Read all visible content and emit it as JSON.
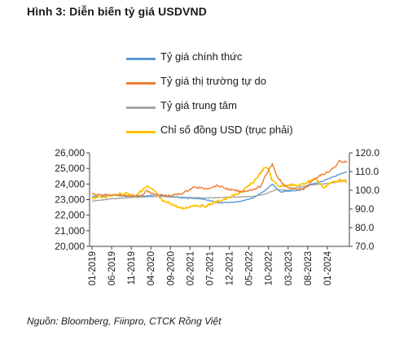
{
  "figure_title": "Hình 3: Diễn biến tỷ giá USDVND",
  "source": "Nguồn: Bloomberg, Fiinpro, CTCK Rồng Việt",
  "colors": {
    "official": "#5B9BD5",
    "free_market": "#ED7D31",
    "central": "#A5A5A5",
    "dxy": "#FFC000",
    "axis": "#404040"
  },
  "chart_data": {
    "type": "line",
    "title": "",
    "legend_position": "top",
    "x_ticks": [
      "01-2019",
      "06-2019",
      "11-2019",
      "04-2020",
      "09-2020",
      "02-2021",
      "07-2021",
      "12-2021",
      "05-2022",
      "10-2022",
      "03-2023",
      "08-2023",
      "01-2024"
    ],
    "y_left": {
      "ticks": [
        "20,000",
        "21,000",
        "22,000",
        "23,000",
        "24,000",
        "25,000",
        "26,000"
      ],
      "ylim": [
        20000,
        26000
      ]
    },
    "y_right": {
      "ticks": [
        "70.0",
        "80.0",
        "90.0",
        "100.0",
        "110.0",
        "120.0"
      ],
      "ylim": [
        70,
        120
      ]
    },
    "grid": false,
    "series": [
      {
        "name": "Tỷ giá chính thức",
        "axis": "left",
        "color_key": "official",
        "x": [
          "2019-01",
          "2019-03",
          "2019-06",
          "2019-09",
          "2019-12",
          "2020-03",
          "2020-06",
          "2020-09",
          "2020-12",
          "2021-03",
          "2021-06",
          "2021-09",
          "2021-12",
          "2022-03",
          "2022-06",
          "2022-09",
          "2022-11",
          "2023-01",
          "2023-03",
          "2023-06",
          "2023-09",
          "2023-11",
          "2024-01",
          "2024-03",
          "2024-05",
          "2024-06"
        ],
        "values": [
          23200,
          23200,
          23300,
          23230,
          23200,
          23250,
          23300,
          23200,
          23100,
          23100,
          23000,
          22800,
          22800,
          22900,
          23100,
          23550,
          24000,
          23500,
          23550,
          23600,
          24000,
          24100,
          24300,
          24500,
          24700,
          24800
        ]
      },
      {
        "name": "Tỷ giá thị trường tự do",
        "axis": "left",
        "color_key": "free_market",
        "x": [
          "2019-01",
          "2019-03",
          "2019-06",
          "2019-09",
          "2019-12",
          "2020-02",
          "2020-03",
          "2020-04",
          "2020-06",
          "2020-09",
          "2020-12",
          "2021-03",
          "2021-06",
          "2021-09",
          "2021-12",
          "2022-03",
          "2022-06",
          "2022-08",
          "2022-10",
          "2022-11",
          "2022-12",
          "2023-02",
          "2023-04",
          "2023-07",
          "2023-09",
          "2023-11",
          "2024-01",
          "2024-03",
          "2024-04",
          "2024-05",
          "2024-06"
        ],
        "values": [
          23350,
          23300,
          23300,
          23250,
          23250,
          23300,
          23600,
          23400,
          23300,
          23250,
          23400,
          23800,
          23700,
          23900,
          23650,
          23500,
          23650,
          23850,
          24900,
          25300,
          24600,
          23900,
          23700,
          23650,
          24150,
          24550,
          24750,
          25100,
          25500,
          25400,
          25450
        ]
      },
      {
        "name": "Tỷ giá trung tâm",
        "axis": "left",
        "color_key": "central",
        "x": [
          "2019-01",
          "2019-06",
          "2019-12",
          "2020-06",
          "2020-12",
          "2021-06",
          "2021-12",
          "2022-06",
          "2022-09",
          "2022-12",
          "2023-03",
          "2023-06",
          "2023-09",
          "2023-12",
          "2024-03",
          "2024-06"
        ],
        "values": [
          22900,
          23050,
          23150,
          23200,
          23150,
          23100,
          23150,
          23200,
          23350,
          23650,
          23600,
          23800,
          23950,
          24000,
          24100,
          24250
        ]
      },
      {
        "name": "Chỉ số đồng USD (trục phải)",
        "axis": "right",
        "color_key": "dxy",
        "x": [
          "2019-01",
          "2019-04",
          "2019-07",
          "2019-10",
          "2019-12",
          "2020-03",
          "2020-05",
          "2020-07",
          "2020-09",
          "2020-12",
          "2021-03",
          "2021-06",
          "2021-09",
          "2021-12",
          "2022-03",
          "2022-06",
          "2022-09",
          "2022-10",
          "2022-11",
          "2023-01",
          "2023-03",
          "2023-06",
          "2023-09",
          "2023-10",
          "2023-12",
          "2024-02",
          "2024-04",
          "2024-06"
        ],
        "values": [
          96,
          96.5,
          97.5,
          98.5,
          97,
          102,
          99.5,
          94,
          93,
          90,
          92,
          91.5,
          94,
          96,
          99,
          104,
          112,
          111.5,
          105,
          102,
          103,
          102.5,
          105.5,
          106.5,
          101.5,
          104,
          105.5,
          104.5
        ]
      }
    ]
  }
}
